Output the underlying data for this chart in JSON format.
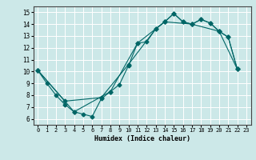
{
  "xlabel": "Humidex (Indice chaleur)",
  "bg_color": "#cce8e8",
  "line_color": "#006666",
  "grid_color": "#ffffff",
  "xlim": [
    -0.5,
    23.5
  ],
  "ylim": [
    5.5,
    15.5
  ],
  "xticks": [
    0,
    1,
    2,
    3,
    4,
    5,
    6,
    7,
    8,
    9,
    10,
    11,
    12,
    13,
    14,
    15,
    16,
    17,
    18,
    19,
    20,
    21,
    22,
    23
  ],
  "yticks": [
    6,
    7,
    8,
    9,
    10,
    11,
    12,
    13,
    14,
    15
  ],
  "line1_x": [
    0,
    1,
    2,
    3,
    4,
    5,
    6,
    7,
    8,
    9,
    10,
    11,
    12,
    13,
    14,
    15,
    16,
    17,
    18,
    19,
    20,
    21,
    22
  ],
  "line1_y": [
    10.1,
    9.0,
    8.0,
    7.2,
    6.6,
    6.4,
    6.2,
    7.7,
    8.3,
    8.9,
    10.5,
    12.4,
    12.5,
    13.6,
    14.2,
    14.9,
    14.2,
    14.0,
    14.4,
    14.1,
    13.4,
    12.9,
    10.2
  ],
  "line2_x": [
    0,
    3,
    7,
    10,
    13,
    14,
    15,
    16,
    17,
    18,
    19,
    20,
    21,
    22
  ],
  "line2_y": [
    10.1,
    7.5,
    7.8,
    10.6,
    13.6,
    14.2,
    14.9,
    14.2,
    14.0,
    14.4,
    14.1,
    13.4,
    12.9,
    10.2
  ],
  "line3_x": [
    0,
    4,
    8,
    11,
    14,
    17,
    20,
    22
  ],
  "line3_y": [
    10.1,
    6.6,
    8.3,
    12.4,
    14.2,
    14.0,
    13.4,
    10.2
  ]
}
